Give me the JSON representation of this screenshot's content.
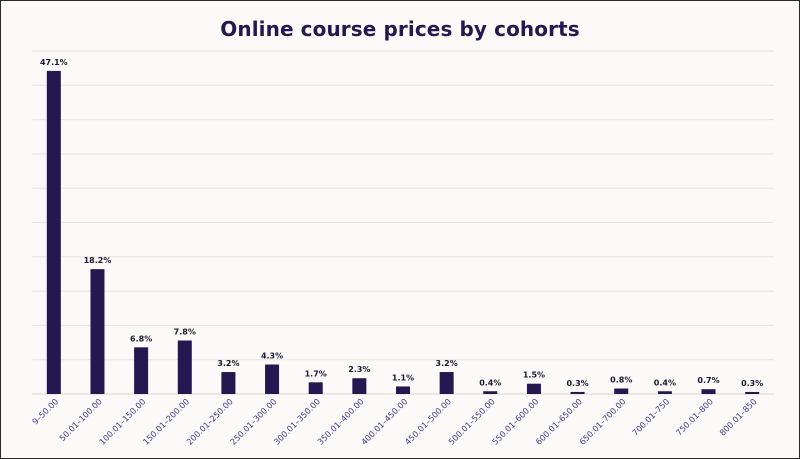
{
  "chart_data": {
    "type": "bar",
    "title": "Online course prices by cohorts",
    "xlabel": "",
    "ylabel": "",
    "categories": [
      "9–50.00",
      "50.01–100.00",
      "100.01–150.00",
      "150.01–200.00",
      "200.01–250.00",
      "250.01–300.00",
      "300.01–350.00",
      "350.01–400.00",
      "400.01–450.00",
      "450.01–500.00",
      "500.01–550.00",
      "550.01–600.00",
      "600.01–650.00",
      "650.01–700.00",
      "700.01–750",
      "750.01–800",
      "800.01–850"
    ],
    "values": [
      47.1,
      18.2,
      6.8,
      7.8,
      3.2,
      4.3,
      1.7,
      2.3,
      1.1,
      3.2,
      0.4,
      1.5,
      0.3,
      0.8,
      0.4,
      0.7,
      0.3
    ],
    "value_labels": [
      "47.1%",
      "18.2%",
      "6.8%",
      "7.8%",
      "3.2%",
      "4.3%",
      "1.7%",
      "2.3%",
      "1.1%",
      "3.2%",
      "0.4%",
      "1.5%",
      "0.3%",
      "0.8%",
      "0.4%",
      "0.7%",
      "0.3%"
    ],
    "ylim": [
      0,
      50
    ],
    "grid": true,
    "legend": "none",
    "colors": {
      "bar": "#25174f",
      "title": "#25174f",
      "tick_label": "#3b3a8a",
      "grid": "#e6e4e0",
      "background": "#fbfaf8"
    }
  }
}
